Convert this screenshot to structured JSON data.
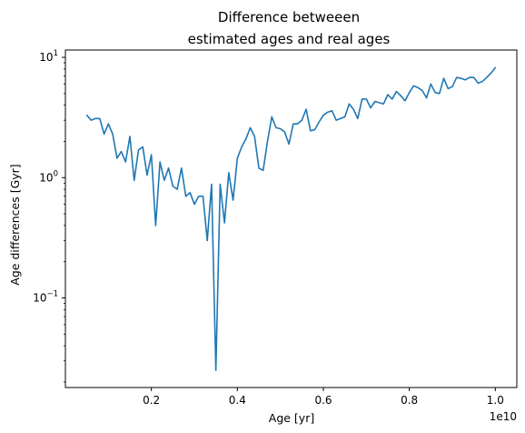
{
  "chart_data": {
    "type": "line",
    "title_lines": [
      "Difference betweeen",
      "estimated ages and real ages"
    ],
    "xlabel": "Age [yr]",
    "ylabel": "Age differences [Gyr]",
    "x_offset_label": "1e10",
    "x_scale": "linear",
    "y_scale": "log",
    "xlim": [
      0.0,
      1.05
    ],
    "ylim": [
      0.018,
      11.5
    ],
    "x_ticks": [
      {
        "value": 0.2,
        "label": "0.2"
      },
      {
        "value": 0.4,
        "label": "0.4"
      },
      {
        "value": 0.6,
        "label": "0.6"
      },
      {
        "value": 0.8,
        "label": "0.8"
      },
      {
        "value": 1.0,
        "label": "1.0"
      }
    ],
    "y_ticks": [
      {
        "value": 0.1,
        "base": "10",
        "exp": "−1"
      },
      {
        "value": 1,
        "base": "10",
        "exp": "0"
      },
      {
        "value": 10,
        "base": "10",
        "exp": "1"
      }
    ],
    "grid": false,
    "line_color": "#1f77b4",
    "series": [
      {
        "x": [
          0.05,
          0.06,
          0.07,
          0.08,
          0.09,
          0.1,
          0.11,
          0.12,
          0.13,
          0.14,
          0.15,
          0.16,
          0.17,
          0.18,
          0.19,
          0.2,
          0.21,
          0.22,
          0.23,
          0.24,
          0.25,
          0.26,
          0.27,
          0.28,
          0.29,
          0.3,
          0.31,
          0.32,
          0.33,
          0.34,
          0.35,
          0.36,
          0.37,
          0.38,
          0.39,
          0.4,
          0.41,
          0.42,
          0.43,
          0.44,
          0.45,
          0.46,
          0.47,
          0.48,
          0.49,
          0.5,
          0.51,
          0.52,
          0.53,
          0.54,
          0.55,
          0.56,
          0.57,
          0.58,
          0.59,
          0.6,
          0.61,
          0.62,
          0.63,
          0.64,
          0.65,
          0.66,
          0.67,
          0.68,
          0.69,
          0.7,
          0.71,
          0.72,
          0.73,
          0.74,
          0.75,
          0.76,
          0.77,
          0.78,
          0.79,
          0.8,
          0.81,
          0.82,
          0.83,
          0.84,
          0.85,
          0.86,
          0.87,
          0.88,
          0.89,
          0.9,
          0.91,
          0.92,
          0.93,
          0.94,
          0.95,
          0.96,
          0.97,
          0.98,
          0.99,
          1.0
        ],
        "values": [
          3.3,
          3.0,
          3.1,
          3.1,
          2.3,
          2.8,
          2.3,
          1.45,
          1.65,
          1.35,
          2.2,
          0.95,
          1.7,
          1.8,
          1.05,
          1.55,
          0.4,
          1.35,
          0.95,
          1.2,
          0.85,
          0.8,
          1.2,
          0.7,
          0.75,
          0.6,
          0.7,
          0.7,
          0.3,
          0.88,
          0.025,
          0.88,
          0.42,
          1.1,
          0.65,
          1.45,
          1.8,
          2.1,
          2.6,
          2.2,
          1.2,
          1.15,
          2.0,
          3.2,
          2.6,
          2.55,
          2.4,
          1.9,
          2.8,
          2.8,
          3.0,
          3.7,
          2.45,
          2.5,
          2.9,
          3.3,
          3.5,
          3.6,
          3.0,
          3.1,
          3.2,
          4.1,
          3.7,
          3.1,
          4.5,
          4.5,
          3.8,
          4.3,
          4.2,
          4.1,
          4.9,
          4.5,
          5.2,
          4.8,
          4.35,
          5.1,
          5.8,
          5.6,
          5.3,
          4.6,
          6.0,
          5.1,
          5.0,
          6.7,
          5.5,
          5.7,
          6.8,
          6.7,
          6.5,
          6.8,
          6.8,
          6.1,
          6.3,
          6.8,
          7.4,
          8.2
        ]
      }
    ]
  }
}
